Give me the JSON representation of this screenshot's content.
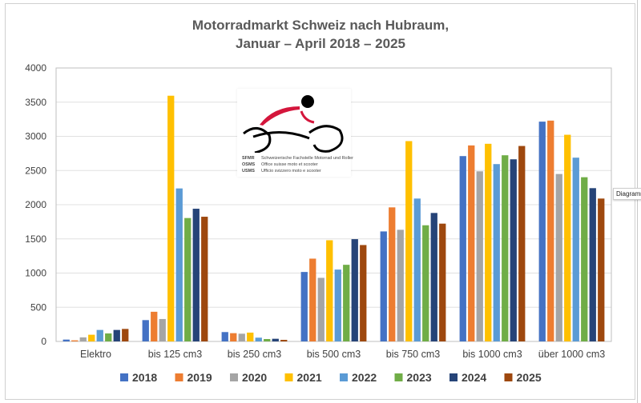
{
  "chart_data": {
    "type": "bar",
    "title": [
      "Motorradmarkt Schweiz nach Hubraum,",
      "Januar – April 2018 – 2025"
    ],
    "categories": [
      "Elektro",
      "bis 125 cm3",
      "bis 250 cm3",
      "bis 500 cm3",
      "bis 750 cm3",
      "bis 1000 cm3",
      "über 1000 cm3"
    ],
    "ylim": [
      0,
      4000
    ],
    "yticks": [
      0,
      500,
      1000,
      1500,
      2000,
      2500,
      3000,
      3500,
      4000
    ],
    "grid": true,
    "legend": "bottom",
    "series": [
      {
        "name": "2018",
        "color": "#4472C4",
        "values": [
          27,
          312,
          137,
          1016,
          1609,
          2711,
          3215
        ]
      },
      {
        "name": "2019",
        "color": "#ED7D31",
        "values": [
          16,
          434,
          121,
          1211,
          1961,
          2867,
          3230
        ]
      },
      {
        "name": "2020",
        "color": "#A5A5A5",
        "values": [
          59,
          328,
          113,
          930,
          1633,
          2488,
          2449
        ]
      },
      {
        "name": "2021",
        "color": "#FFC000",
        "values": [
          98,
          3594,
          129,
          1480,
          2930,
          2891,
          3023
        ]
      },
      {
        "name": "2022",
        "color": "#5B9BD5",
        "values": [
          168,
          2238,
          55,
          1051,
          2090,
          2594,
          2688
        ]
      },
      {
        "name": "2023",
        "color": "#70AD47",
        "values": [
          117,
          1805,
          35,
          1121,
          1699,
          2723,
          2402
        ]
      },
      {
        "name": "2024",
        "color": "#264478",
        "values": [
          168,
          1941,
          39,
          1496,
          1879,
          2664,
          2242
        ]
      },
      {
        "name": "2025",
        "color": "#9E480E",
        "values": [
          183,
          1824,
          23,
          1410,
          1723,
          2859,
          2090
        ]
      }
    ]
  },
  "logo": {
    "lines": [
      {
        "abbr": "SFMR",
        "text": "Schweizerische Fachstelle Motorrad und Roller"
      },
      {
        "abbr": "OSMS",
        "text": "Office suisse moto et scooter"
      },
      {
        "abbr": "USMS",
        "text": "Ufficio svizzero moto e scooter"
      }
    ]
  },
  "tooltip": "Diagramm"
}
